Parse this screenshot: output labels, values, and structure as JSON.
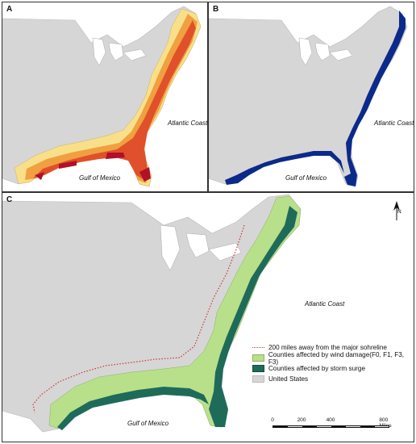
{
  "panels": {
    "a": {
      "letter": "A",
      "atlantic": "Atlantic Coast",
      "gulf": "Gulf of Mexico"
    },
    "b": {
      "letter": "B",
      "atlantic": "Atlantic Coast",
      "gulf": "Gulf of Mexico"
    },
    "c": {
      "letter": "C",
      "atlantic": "Atlantic Coast",
      "gulf": "Gulf of Mexico"
    }
  },
  "legend": {
    "items": [
      {
        "label": "200 miles away from the major sohreline",
        "color": "#d33333",
        "kind": "line"
      },
      {
        "label": "Counties affected by wind damage(F0, F1, F3, F3)",
        "color": "#b8e08a",
        "kind": "fill"
      },
      {
        "label": "Counties affected by storm surge",
        "color": "#1f6b5a",
        "kind": "fill"
      },
      {
        "label": "United States",
        "color": "#d6d6d6",
        "kind": "fill"
      }
    ]
  },
  "scale": {
    "ticks": [
      "0",
      "200",
      "400",
      "800 Miles"
    ]
  },
  "north": "N",
  "colors": {
    "land": "#d6d6d6",
    "ocean": "#ffffff",
    "wind_light": "#f8e08a",
    "wind_mid": "#f0a040",
    "wind_high": "#e0502a",
    "wind_max": "#b01028",
    "surge_b": "#0b2a8a",
    "wind_c": "#b8e08a",
    "surge_c": "#1f6b5a"
  }
}
